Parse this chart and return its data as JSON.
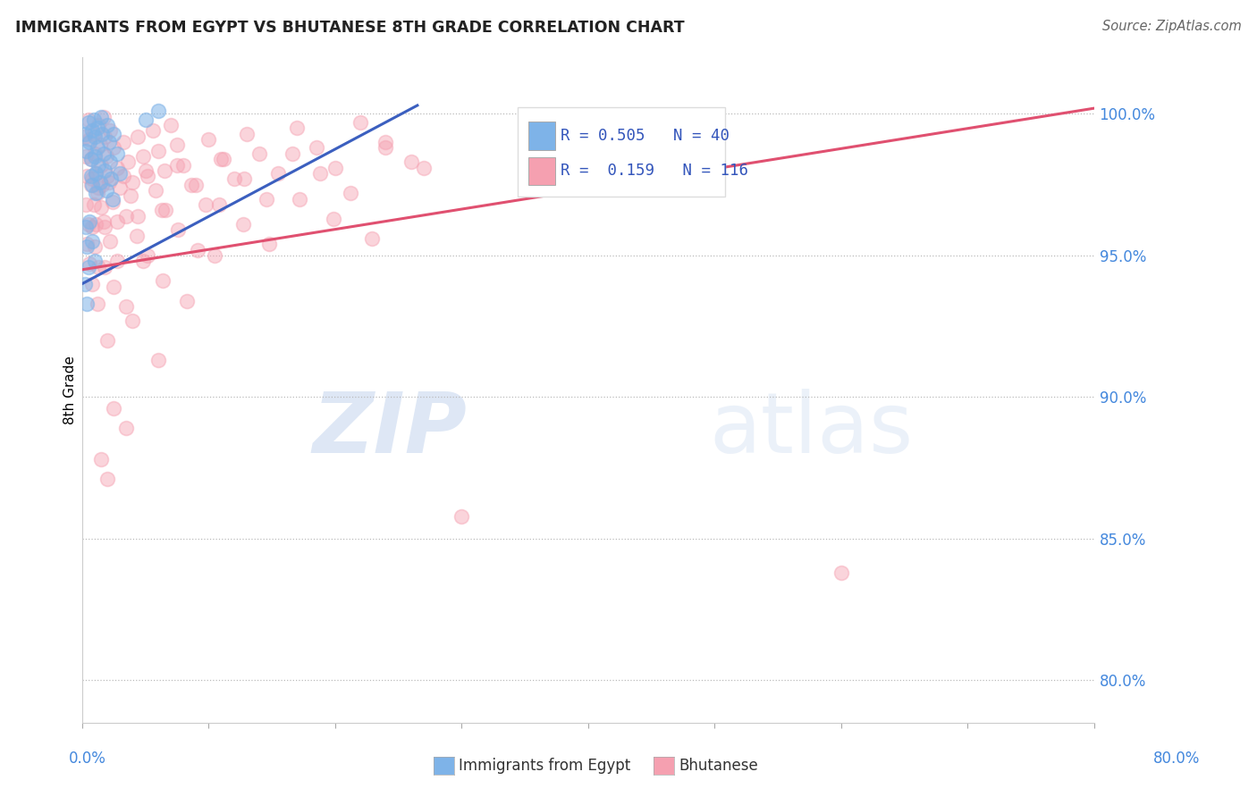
{
  "title": "IMMIGRANTS FROM EGYPT VS BHUTANESE 8TH GRADE CORRELATION CHART",
  "source": "Source: ZipAtlas.com",
  "ylabel": "8th Grade",
  "ytick_labels": [
    "100.0%",
    "95.0%",
    "90.0%",
    "85.0%",
    "80.0%"
  ],
  "ytick_values": [
    1.0,
    0.95,
    0.9,
    0.85,
    0.8
  ],
  "xlim": [
    0.0,
    0.8
  ],
  "ylim": [
    0.785,
    1.02
  ],
  "blue_color_face": "#7EB3E8",
  "blue_color_edge": "#7EB3E8",
  "pink_color_face": "#F5A0B0",
  "pink_color_edge": "#F5A0B0",
  "blue_line_color": "#3B5FBF",
  "pink_line_color": "#E05070",
  "legend_blue_r": "R = 0.505",
  "legend_blue_n": "N = 40",
  "legend_pink_r": "R =  0.159",
  "legend_pink_n": "N = 116",
  "watermark_zip": "ZIP",
  "watermark_atlas": "atlas",
  "blue_line_x": [
    0.0,
    0.265
  ],
  "blue_line_y": [
    0.94,
    1.003
  ],
  "pink_line_x": [
    0.0,
    0.8
  ],
  "pink_line_y": [
    0.945,
    1.002
  ],
  "blue_points": [
    [
      0.002,
      0.993
    ],
    [
      0.003,
      0.987
    ],
    [
      0.005,
      0.997
    ],
    [
      0.006,
      0.99
    ],
    [
      0.007,
      0.984
    ],
    [
      0.007,
      0.978
    ],
    [
      0.008,
      0.994
    ],
    [
      0.008,
      0.975
    ],
    [
      0.009,
      0.998
    ],
    [
      0.01,
      0.992
    ],
    [
      0.01,
      0.985
    ],
    [
      0.011,
      0.979
    ],
    [
      0.011,
      0.972
    ],
    [
      0.012,
      0.995
    ],
    [
      0.012,
      0.988
    ],
    [
      0.013,
      0.982
    ],
    [
      0.014,
      0.976
    ],
    [
      0.015,
      0.999
    ],
    [
      0.016,
      0.993
    ],
    [
      0.017,
      0.986
    ],
    [
      0.018,
      0.98
    ],
    [
      0.019,
      0.973
    ],
    [
      0.02,
      0.996
    ],
    [
      0.021,
      0.99
    ],
    [
      0.022,
      0.983
    ],
    [
      0.023,
      0.977
    ],
    [
      0.024,
      0.97
    ],
    [
      0.025,
      0.993
    ],
    [
      0.028,
      0.986
    ],
    [
      0.03,
      0.979
    ],
    [
      0.003,
      0.96
    ],
    [
      0.004,
      0.953
    ],
    [
      0.005,
      0.946
    ],
    [
      0.006,
      0.962
    ],
    [
      0.008,
      0.955
    ],
    [
      0.01,
      0.948
    ],
    [
      0.05,
      0.998
    ],
    [
      0.06,
      1.001
    ],
    [
      0.002,
      0.94
    ],
    [
      0.004,
      0.933
    ]
  ],
  "pink_points": [
    [
      0.002,
      0.992
    ],
    [
      0.003,
      0.985
    ],
    [
      0.004,
      0.978
    ],
    [
      0.005,
      0.998
    ],
    [
      0.006,
      0.991
    ],
    [
      0.007,
      0.984
    ],
    [
      0.008,
      0.977
    ],
    [
      0.009,
      0.993
    ],
    [
      0.01,
      0.986
    ],
    [
      0.011,
      0.979
    ],
    [
      0.012,
      0.972
    ],
    [
      0.013,
      0.996
    ],
    [
      0.014,
      0.989
    ],
    [
      0.015,
      0.982
    ],
    [
      0.016,
      0.975
    ],
    [
      0.017,
      0.999
    ],
    [
      0.018,
      0.992
    ],
    [
      0.019,
      0.985
    ],
    [
      0.02,
      0.978
    ],
    [
      0.022,
      0.994
    ],
    [
      0.025,
      0.988
    ],
    [
      0.028,
      0.981
    ],
    [
      0.03,
      0.974
    ],
    [
      0.033,
      0.99
    ],
    [
      0.036,
      0.983
    ],
    [
      0.04,
      0.976
    ],
    [
      0.044,
      0.992
    ],
    [
      0.048,
      0.985
    ],
    [
      0.052,
      0.978
    ],
    [
      0.056,
      0.994
    ],
    [
      0.06,
      0.987
    ],
    [
      0.065,
      0.98
    ],
    [
      0.07,
      0.996
    ],
    [
      0.075,
      0.989
    ],
    [
      0.08,
      0.982
    ],
    [
      0.09,
      0.975
    ],
    [
      0.1,
      0.991
    ],
    [
      0.11,
      0.984
    ],
    [
      0.12,
      0.977
    ],
    [
      0.13,
      0.993
    ],
    [
      0.14,
      0.986
    ],
    [
      0.155,
      0.979
    ],
    [
      0.17,
      0.995
    ],
    [
      0.185,
      0.988
    ],
    [
      0.2,
      0.981
    ],
    [
      0.22,
      0.997
    ],
    [
      0.24,
      0.99
    ],
    [
      0.26,
      0.983
    ],
    [
      0.003,
      0.968
    ],
    [
      0.005,
      0.961
    ],
    [
      0.007,
      0.975
    ],
    [
      0.009,
      0.968
    ],
    [
      0.011,
      0.961
    ],
    [
      0.013,
      0.974
    ],
    [
      0.015,
      0.967
    ],
    [
      0.018,
      0.96
    ],
    [
      0.021,
      0.976
    ],
    [
      0.024,
      0.969
    ],
    [
      0.028,
      0.962
    ],
    [
      0.033,
      0.978
    ],
    [
      0.038,
      0.971
    ],
    [
      0.044,
      0.964
    ],
    [
      0.05,
      0.98
    ],
    [
      0.058,
      0.973
    ],
    [
      0.066,
      0.966
    ],
    [
      0.075,
      0.982
    ],
    [
      0.086,
      0.975
    ],
    [
      0.098,
      0.968
    ],
    [
      0.112,
      0.984
    ],
    [
      0.128,
      0.977
    ],
    [
      0.146,
      0.97
    ],
    [
      0.166,
      0.986
    ],
    [
      0.188,
      0.979
    ],
    [
      0.212,
      0.972
    ],
    [
      0.24,
      0.988
    ],
    [
      0.27,
      0.981
    ],
    [
      0.004,
      0.954
    ],
    [
      0.006,
      0.947
    ],
    [
      0.008,
      0.96
    ],
    [
      0.01,
      0.953
    ],
    [
      0.013,
      0.946
    ],
    [
      0.017,
      0.962
    ],
    [
      0.022,
      0.955
    ],
    [
      0.028,
      0.948
    ],
    [
      0.035,
      0.964
    ],
    [
      0.043,
      0.957
    ],
    [
      0.052,
      0.95
    ],
    [
      0.063,
      0.966
    ],
    [
      0.076,
      0.959
    ],
    [
      0.091,
      0.952
    ],
    [
      0.108,
      0.968
    ],
    [
      0.127,
      0.961
    ],
    [
      0.148,
      0.954
    ],
    [
      0.172,
      0.97
    ],
    [
      0.199,
      0.963
    ],
    [
      0.229,
      0.956
    ],
    [
      0.008,
      0.94
    ],
    [
      0.012,
      0.933
    ],
    [
      0.018,
      0.946
    ],
    [
      0.025,
      0.939
    ],
    [
      0.035,
      0.932
    ],
    [
      0.048,
      0.948
    ],
    [
      0.064,
      0.941
    ],
    [
      0.083,
      0.934
    ],
    [
      0.105,
      0.95
    ],
    [
      0.04,
      0.927
    ],
    [
      0.02,
      0.92
    ],
    [
      0.06,
      0.913
    ],
    [
      0.025,
      0.896
    ],
    [
      0.035,
      0.889
    ],
    [
      0.015,
      0.878
    ],
    [
      0.02,
      0.871
    ],
    [
      0.6,
      0.838
    ],
    [
      0.3,
      0.858
    ]
  ]
}
